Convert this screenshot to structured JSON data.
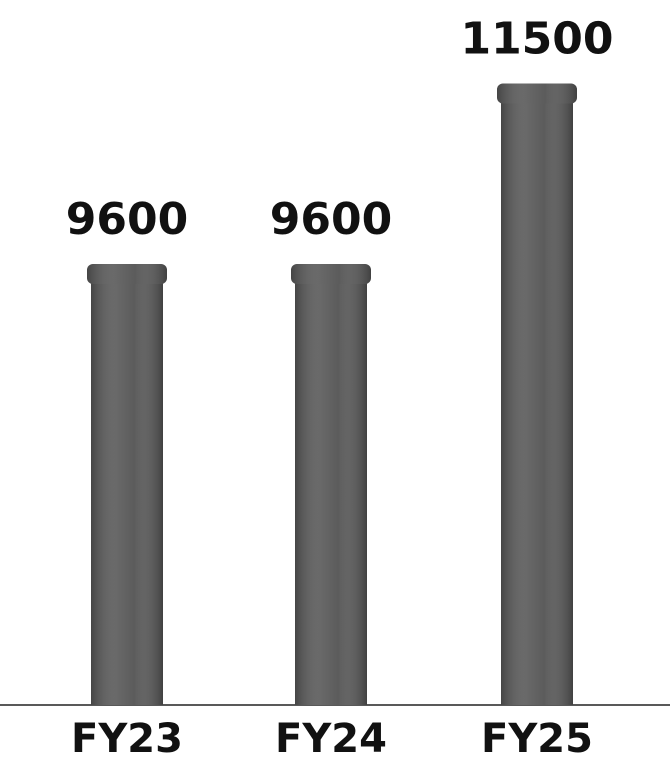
{
  "chart_data": {
    "type": "bar",
    "categories": [
      "FY23",
      "FY24",
      "FY25"
    ],
    "values": [
      9600,
      9600,
      11500
    ],
    "color": "#5c5c5c",
    "ylim": [
      5000,
      12400
    ]
  }
}
